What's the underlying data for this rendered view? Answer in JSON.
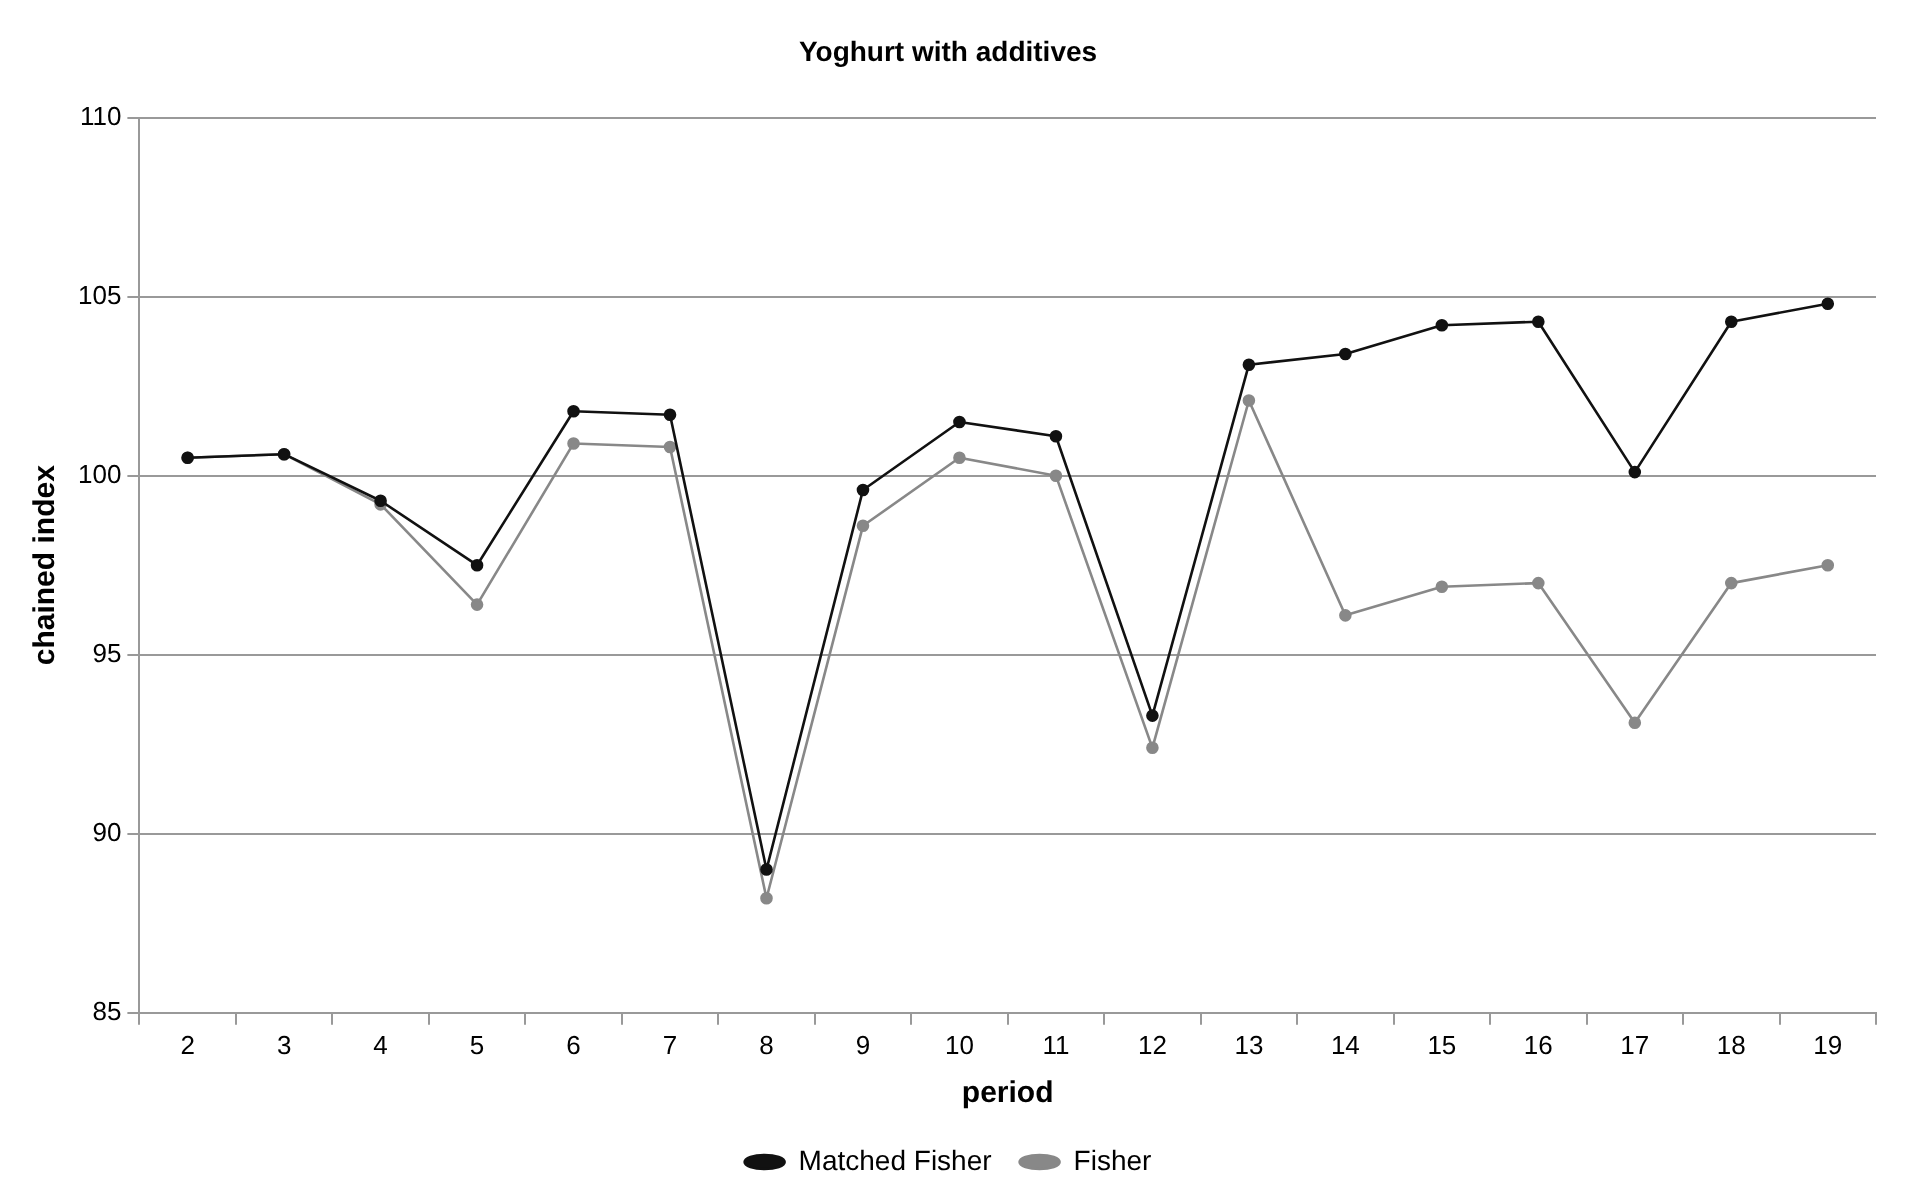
{
  "chart_data": {
    "type": "line",
    "title": "Yoghurt with additives",
    "xlabel": "period",
    "ylabel": "chained index",
    "categories": [
      "2",
      "3",
      "4",
      "5",
      "6",
      "7",
      "8",
      "9",
      "10",
      "11",
      "12",
      "13",
      "14",
      "15",
      "16",
      "17",
      "18",
      "19"
    ],
    "series": [
      {
        "name": "Matched Fisher",
        "color": "#111111",
        "values": [
          100.5,
          100.6,
          99.3,
          97.5,
          101.8,
          101.7,
          89.0,
          99.6,
          101.5,
          101.1,
          93.3,
          103.1,
          103.4,
          104.2,
          104.3,
          100.1,
          104.3,
          104.8
        ]
      },
      {
        "name": "Fisher",
        "color": "#888888",
        "values": [
          100.5,
          100.6,
          99.2,
          96.4,
          100.9,
          100.8,
          88.2,
          98.6,
          100.5,
          100.0,
          92.4,
          102.1,
          96.1,
          96.9,
          97.0,
          93.1,
          97.0,
          97.5
        ]
      }
    ],
    "ylim": [
      85,
      110
    ],
    "yticks": [
      85,
      90,
      95,
      100,
      105,
      110
    ],
    "grid": "y",
    "legend": "bottom",
    "marker": "circle",
    "line_style": "solid"
  }
}
